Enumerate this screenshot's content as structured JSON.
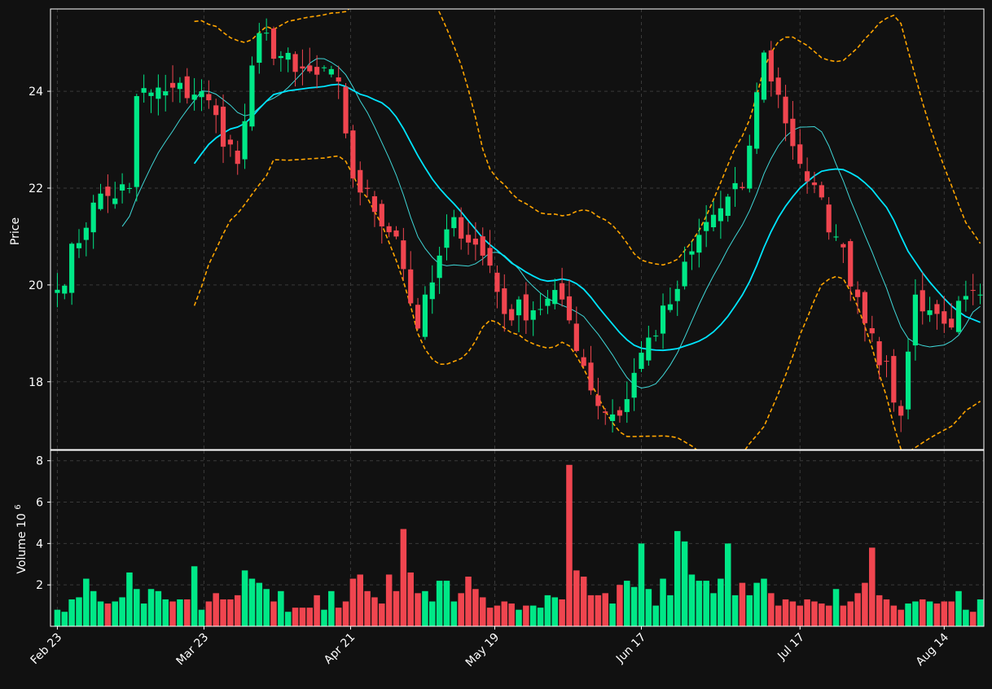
{
  "colors": {
    "background": "#111111",
    "up": "#00e887",
    "down": "#f0454f",
    "ma_fast": "#3fd7d7",
    "ma_slow": "#00e5ff",
    "bollinger": "#ffa500",
    "grid": "#3a3a3a",
    "text": "#ffffff"
  },
  "chart_data": [
    {
      "type": "candlestick",
      "title": "",
      "ylabel": "Price",
      "xlabel": "",
      "ylim": [
        16.6,
        25.7
      ],
      "yticks": [
        18,
        20,
        22,
        24
      ],
      "grid": true,
      "overlays": [
        {
          "kind": "moving-average-fast",
          "style": "solid thin"
        },
        {
          "kind": "moving-average-slow",
          "style": "solid"
        },
        {
          "kind": "bollinger-bands",
          "style": "dashed"
        }
      ],
      "anchors": [
        {
          "date": "2024-02-23",
          "close": 19.9
        },
        {
          "date": "2024-03-01",
          "close": 21.7
        },
        {
          "date": "2024-03-08",
          "close": 22.0
        },
        {
          "date": "2024-03-11",
          "close": 23.9
        },
        {
          "date": "2024-03-15",
          "close": 24.0
        },
        {
          "date": "2024-03-22",
          "close": 24.0
        },
        {
          "date": "2024-03-29",
          "close": 22.5
        },
        {
          "date": "2024-04-03",
          "close": 25.2
        },
        {
          "date": "2024-04-10",
          "close": 24.4
        },
        {
          "date": "2024-04-18",
          "close": 24.2
        },
        {
          "date": "2024-04-22",
          "close": 22.2
        },
        {
          "date": "2024-04-30",
          "close": 21.0
        },
        {
          "date": "2024-05-03",
          "close": 19.1
        },
        {
          "date": "2024-05-10",
          "close": 21.4
        },
        {
          "date": "2024-05-17",
          "close": 20.4
        },
        {
          "date": "2024-05-21",
          "close": 19.4
        },
        {
          "date": "2024-05-31",
          "close": 19.7
        },
        {
          "date": "2024-06-07",
          "close": 17.5
        },
        {
          "date": "2024-06-12",
          "close": 17.3
        },
        {
          "date": "2024-06-17",
          "close": 18.6
        },
        {
          "date": "2024-06-21",
          "close": 19.6
        },
        {
          "date": "2024-06-28",
          "close": 21.3
        },
        {
          "date": "2024-07-05",
          "close": 22.0
        },
        {
          "date": "2024-07-10",
          "close": 24.8
        },
        {
          "date": "2024-07-17",
          "close": 22.5
        },
        {
          "date": "2024-07-24",
          "close": 21.0
        },
        {
          "date": "2024-07-31",
          "close": 19.0
        },
        {
          "date": "2024-08-06",
          "close": 17.3
        },
        {
          "date": "2024-08-08",
          "close": 19.8
        },
        {
          "date": "2024-08-14",
          "close": 19.2
        },
        {
          "date": "2024-08-21",
          "close": 19.8
        }
      ]
    },
    {
      "type": "bar",
      "ylabel": "Volume",
      "ylabel_exponent": "10",
      "ylabel_exponent_power": "6",
      "ylim": [
        0,
        8.5
      ],
      "yticks": [
        2,
        4,
        6,
        8
      ],
      "grid": true,
      "x_tick_labels": [
        "Feb 23",
        "Mar 23",
        "Apr 21",
        "May 19",
        "Jun 17",
        "Jul 17",
        "Aug 14"
      ],
      "x_tick_dates": [
        "2024-02-23",
        "2024-03-23",
        "2024-04-21",
        "2024-05-19",
        "2024-06-17",
        "2024-07-17",
        "2024-08-14"
      ],
      "values": [
        0.8,
        0.7,
        1.3,
        1.4,
        2.3,
        1.7,
        1.2,
        1.1,
        1.2,
        1.4,
        2.6,
        1.8,
        1.1,
        1.8,
        1.7,
        1.3,
        1.2,
        1.3,
        1.3,
        2.9,
        0.8,
        1.2,
        1.6,
        1.3,
        1.3,
        1.5,
        2.7,
        2.3,
        2.1,
        1.8,
        1.2,
        1.7,
        0.7,
        0.9,
        0.9,
        0.9,
        1.5,
        0.8,
        1.7,
        0.9,
        1.2,
        2.3,
        2.5,
        1.7,
        1.4,
        1.1,
        2.5,
        1.7,
        4.7,
        2.6,
        1.6,
        1.7,
        1.2,
        2.2,
        2.2,
        1.2,
        1.6,
        2.4,
        1.8,
        1.4,
        0.9,
        1.0,
        1.2,
        1.1,
        0.8,
        1.0,
        1.0,
        0.9,
        1.5,
        1.4,
        1.3,
        7.8,
        2.7,
        2.4,
        1.5,
        1.5,
        1.6,
        1.1,
        2.0,
        2.2,
        1.9,
        4.0,
        1.8,
        1.0,
        2.3,
        1.5,
        4.6,
        4.1,
        2.5,
        2.2,
        2.2,
        1.6,
        2.3,
        4.0,
        1.5,
        2.1,
        1.5,
        2.1,
        2.3,
        1.6,
        1.0,
        1.3,
        1.2,
        1.0,
        1.3,
        1.2,
        1.1,
        1.0,
        1.8,
        1.0,
        1.2,
        1.6,
        2.1,
        3.8,
        1.5,
        1.3,
        1.0,
        0.8,
        1.1,
        1.2,
        1.3,
        1.2,
        1.1,
        1.2,
        1.2,
        1.7
      ]
    }
  ]
}
